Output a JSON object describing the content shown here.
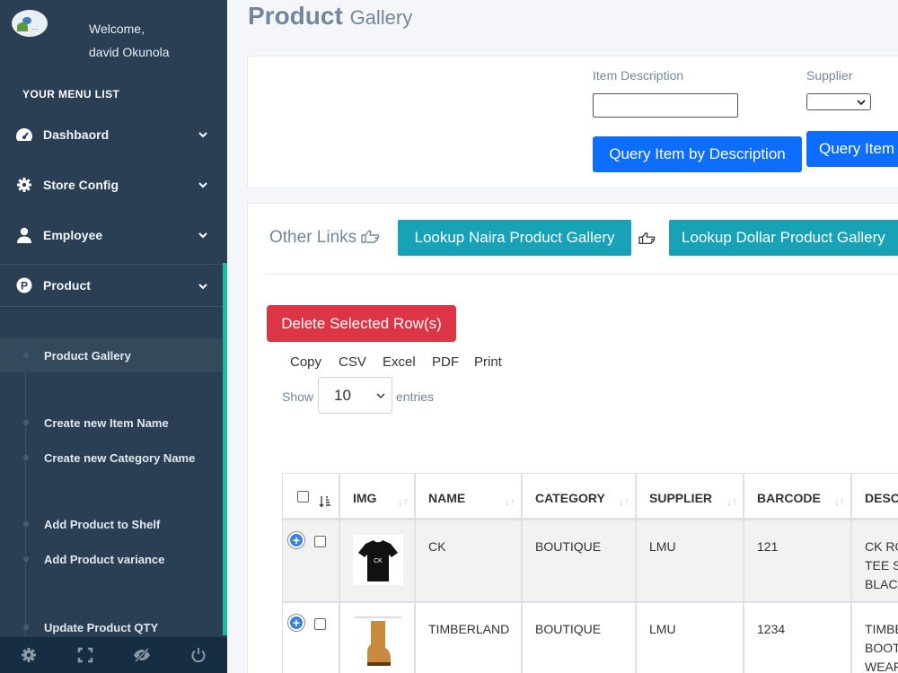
{
  "user": {
    "welcome": "Welcome,",
    "name": "david Okunola"
  },
  "sidebar": {
    "menu_title": "YOUR MENU LIST",
    "items": [
      {
        "label": "Dashbaord",
        "icon": "dashboard-icon"
      },
      {
        "label": "Store Config",
        "icon": "gear-icon"
      },
      {
        "label": "Employee",
        "icon": "user-icon"
      },
      {
        "label": "Product",
        "icon": "product-p-icon"
      }
    ],
    "sub_items": [
      "Product Gallery",
      "Create new Item Name",
      "Create new Category Name",
      "Add Product to Shelf",
      "Add Product variance",
      "Update Product QTY"
    ],
    "footer_icons": [
      "settings-icon",
      "fullscreen-icon",
      "hide-eye-icon",
      "power-icon"
    ]
  },
  "page": {
    "title_bold": "Product",
    "title_rest": "Gallery"
  },
  "query": {
    "item_description_label": "Item Description",
    "supplier_label": "Supplier",
    "btn_by_description": "Query Item by Description",
    "btn_by_supplier": "Query Item"
  },
  "links": {
    "other_links": "Other Links",
    "naira": "Lookup Naira Product Gallery",
    "dollar": "Lookup Dollar Product Gallery"
  },
  "actions": {
    "delete_selected": "Delete Selected Row(s)",
    "exports": [
      "Copy",
      "CSV",
      "Excel",
      "PDF",
      "Print"
    ],
    "show": "Show",
    "entries_value": "10",
    "entries": "entries"
  },
  "table": {
    "headers": [
      "IMG",
      "NAME",
      "CATEGORY",
      "SUPPLIER",
      "BARCODE",
      "DESC"
    ],
    "rows": [
      {
        "name": "CK",
        "category": "BOUTIQUE",
        "supplier": "LMU",
        "barcode": "121",
        "desc": [
          "CK RO",
          "TEE S",
          "BLAC"
        ]
      },
      {
        "name": "TIMBERLAND",
        "category": "BOUTIQUE",
        "supplier": "LMU",
        "barcode": "1234",
        "desc": [
          "TIMBE",
          "BOOT",
          "WEAF"
        ]
      }
    ]
  },
  "colors": {
    "sidebar": "#2a3f54",
    "accent_green": "#1abb9c",
    "primary_blue": "#0d6efd",
    "teal": "#17a2b8",
    "danger_red": "#dc3545"
  }
}
